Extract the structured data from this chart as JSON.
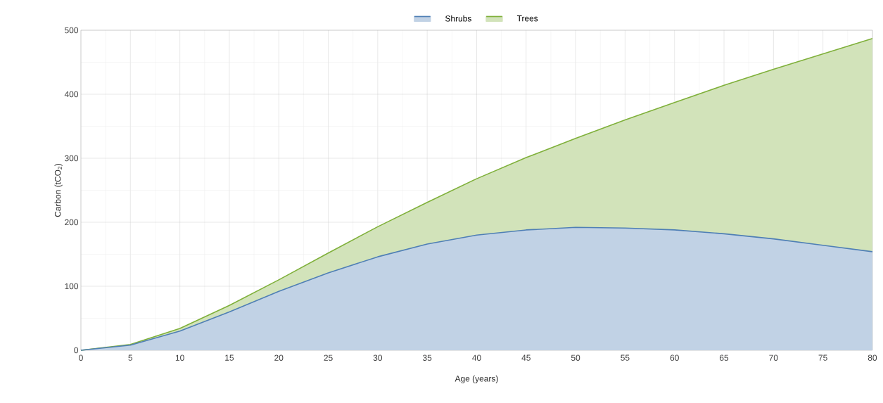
{
  "chart_data": {
    "type": "area",
    "xlabel": "Age (years)",
    "ylabel": "Carbon (tCO$_{2}$)",
    "x": [
      0,
      5,
      10,
      15,
      20,
      25,
      30,
      35,
      40,
      45,
      50,
      55,
      60,
      65,
      70,
      75,
      80
    ],
    "series": [
      {
        "name": "Shrubs",
        "color": "#4f7fb5",
        "values": [
          0,
          8,
          30,
          60,
          92,
          121,
          146,
          166,
          180,
          188,
          192,
          191,
          188,
          182,
          174,
          164,
          154
        ]
      },
      {
        "name": "Trees",
        "color": "#7fb03a",
        "values": [
          0,
          9,
          34,
          70,
          110,
          152,
          193,
          231,
          268,
          301,
          331,
          360,
          387,
          414,
          439,
          463,
          487
        ]
      }
    ],
    "xlim": [
      0,
      80
    ],
    "xticks": [
      0,
      5,
      10,
      15,
      20,
      25,
      30,
      35,
      40,
      45,
      50,
      55,
      60,
      65,
      70,
      75,
      80
    ],
    "ylim": [
      0,
      500
    ],
    "yticks": [
      0,
      100,
      200,
      300,
      400,
      500
    ],
    "grid": true,
    "legend": "top",
    "marker": "none",
    "line_style": "solid"
  }
}
